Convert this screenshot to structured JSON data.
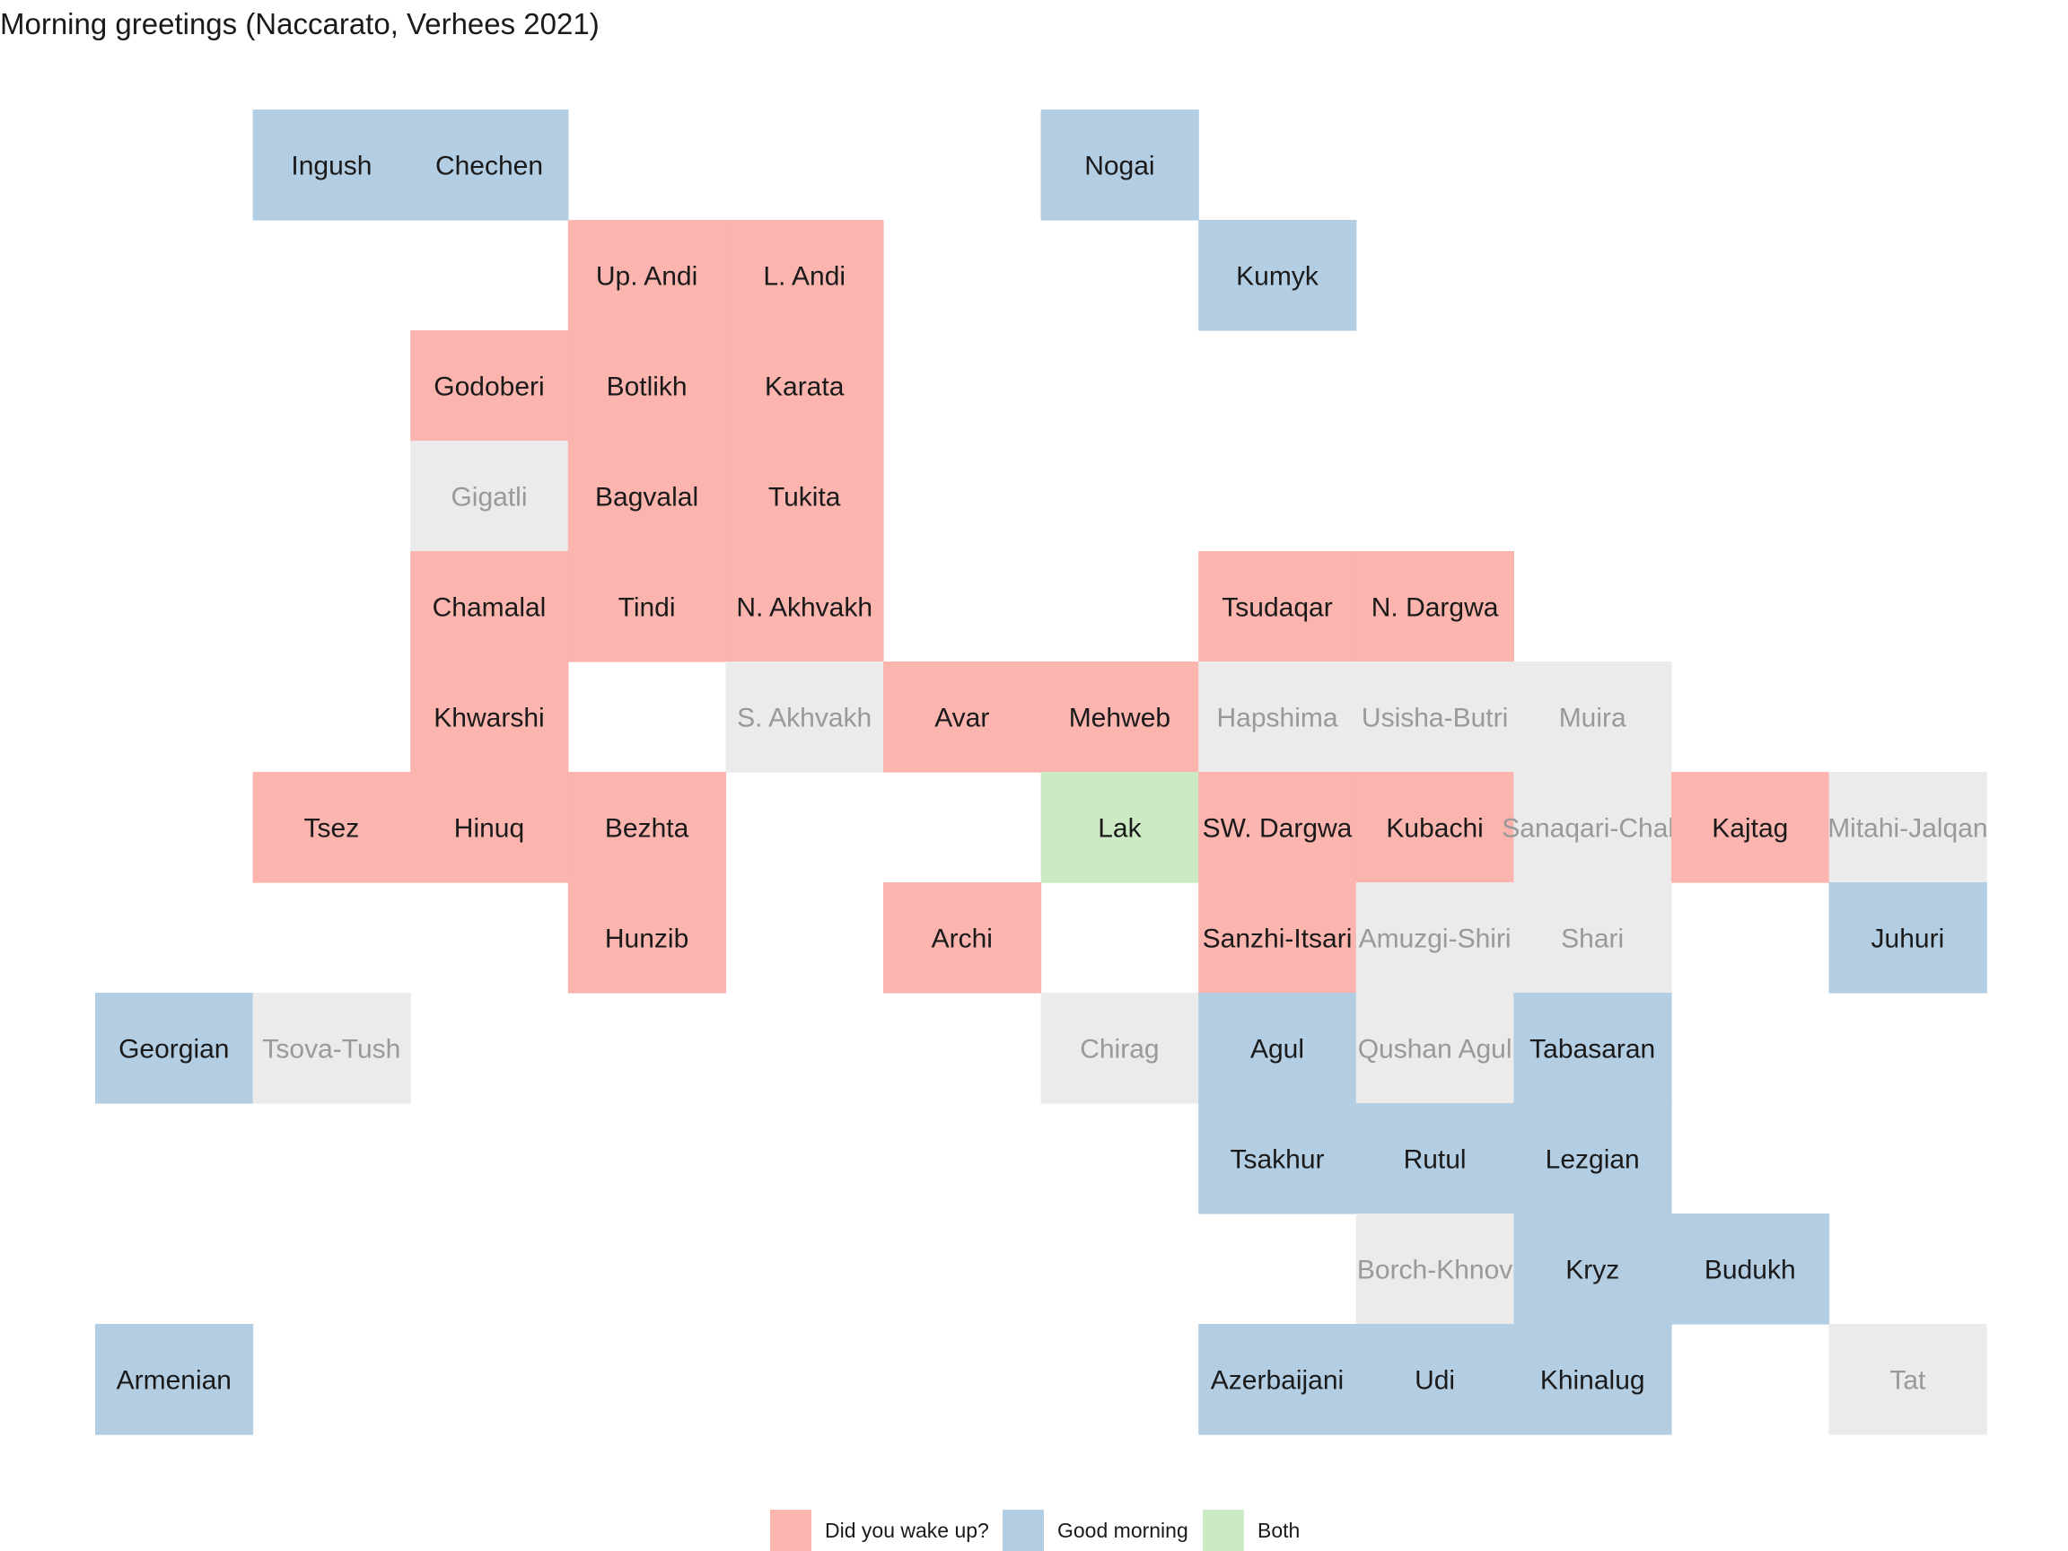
{
  "chart_data": {
    "type": "heatmap",
    "title": "Morning greetings (Naccarato, Verhees 2021)",
    "categories": [
      {
        "key": "wake",
        "label": "Did you wake up?",
        "color": "#fbb4ae"
      },
      {
        "key": "morning",
        "label": "Good morning",
        "color": "#b3cde3"
      },
      {
        "key": "both",
        "label": "Both",
        "color": "#ccebc5"
      }
    ],
    "missing_color": "#ebebeb",
    "text_color": "#1a1a1a",
    "missing_text_color": "#999999",
    "grid": {
      "cols": 12,
      "rows": 12
    },
    "tiles": [
      {
        "name": "Ingush",
        "col": 2,
        "row": 1,
        "value": "morning"
      },
      {
        "name": "Chechen",
        "col": 3,
        "row": 1,
        "value": "morning"
      },
      {
        "name": "Nogai",
        "col": 7,
        "row": 1,
        "value": "morning"
      },
      {
        "name": "Up. Andi",
        "col": 4,
        "row": 2,
        "value": "wake"
      },
      {
        "name": "L. Andi",
        "col": 5,
        "row": 2,
        "value": "wake"
      },
      {
        "name": "Kumyk",
        "col": 8,
        "row": 2,
        "value": "morning"
      },
      {
        "name": "Godoberi",
        "col": 3,
        "row": 3,
        "value": "wake"
      },
      {
        "name": "Botlikh",
        "col": 4,
        "row": 3,
        "value": "wake"
      },
      {
        "name": "Karata",
        "col": 5,
        "row": 3,
        "value": "wake"
      },
      {
        "name": "Gigatli",
        "col": 3,
        "row": 4,
        "value": null
      },
      {
        "name": "Bagvalal",
        "col": 4,
        "row": 4,
        "value": "wake"
      },
      {
        "name": "Tukita",
        "col": 5,
        "row": 4,
        "value": "wake"
      },
      {
        "name": "Chamalal",
        "col": 3,
        "row": 5,
        "value": "wake"
      },
      {
        "name": "Tindi",
        "col": 4,
        "row": 5,
        "value": "wake"
      },
      {
        "name": "N. Akhvakh",
        "col": 5,
        "row": 5,
        "value": "wake"
      },
      {
        "name": "Tsudaqar",
        "col": 8,
        "row": 5,
        "value": "wake"
      },
      {
        "name": "N. Dargwa",
        "col": 9,
        "row": 5,
        "value": "wake"
      },
      {
        "name": "Khwarshi",
        "col": 3,
        "row": 6,
        "value": "wake"
      },
      {
        "name": "S. Akhvakh",
        "col": 5,
        "row": 6,
        "value": null
      },
      {
        "name": "Avar",
        "col": 6,
        "row": 6,
        "value": "wake"
      },
      {
        "name": "Mehweb",
        "col": 7,
        "row": 6,
        "value": "wake"
      },
      {
        "name": "Hapshima",
        "col": 8,
        "row": 6,
        "value": null
      },
      {
        "name": "Usisha-Butri",
        "col": 9,
        "row": 6,
        "value": null
      },
      {
        "name": "Muira",
        "col": 10,
        "row": 6,
        "value": null
      },
      {
        "name": "Tsez",
        "col": 2,
        "row": 7,
        "value": "wake"
      },
      {
        "name": "Hinuq",
        "col": 3,
        "row": 7,
        "value": "wake"
      },
      {
        "name": "Bezhta",
        "col": 4,
        "row": 7,
        "value": "wake"
      },
      {
        "name": "Lak",
        "col": 7,
        "row": 7,
        "value": "both"
      },
      {
        "name": "SW. Dargwa",
        "col": 8,
        "row": 7,
        "value": "wake"
      },
      {
        "name": "Kubachi",
        "col": 9,
        "row": 7,
        "value": "wake"
      },
      {
        "name": "Sanaqari-Chah",
        "col": 10,
        "row": 7,
        "value": null
      },
      {
        "name": "Kajtag",
        "col": 11,
        "row": 7,
        "value": "wake"
      },
      {
        "name": "Mitahi-Jalqan",
        "col": 12,
        "row": 7,
        "value": null
      },
      {
        "name": "Hunzib",
        "col": 4,
        "row": 8,
        "value": "wake"
      },
      {
        "name": "Archi",
        "col": 6,
        "row": 8,
        "value": "wake"
      },
      {
        "name": "Sanzhi-Itsari",
        "col": 8,
        "row": 8,
        "value": "wake"
      },
      {
        "name": "Amuzgi-Shiri",
        "col": 9,
        "row": 8,
        "value": null
      },
      {
        "name": "Shari",
        "col": 10,
        "row": 8,
        "value": null
      },
      {
        "name": "Juhuri",
        "col": 12,
        "row": 8,
        "value": "morning"
      },
      {
        "name": "Georgian",
        "col": 1,
        "row": 9,
        "value": "morning"
      },
      {
        "name": "Tsova-Tush",
        "col": 2,
        "row": 9,
        "value": null
      },
      {
        "name": "Chirag",
        "col": 7,
        "row": 9,
        "value": null
      },
      {
        "name": "Agul",
        "col": 8,
        "row": 9,
        "value": "morning"
      },
      {
        "name": "Qushan Agul",
        "col": 9,
        "row": 9,
        "value": null
      },
      {
        "name": "Tabasaran",
        "col": 10,
        "row": 9,
        "value": "morning"
      },
      {
        "name": "Tsakhur",
        "col": 8,
        "row": 10,
        "value": "morning"
      },
      {
        "name": "Rutul",
        "col": 9,
        "row": 10,
        "value": "morning"
      },
      {
        "name": "Lezgian",
        "col": 10,
        "row": 10,
        "value": "morning"
      },
      {
        "name": "Borch-Khnov",
        "col": 9,
        "row": 11,
        "value": null
      },
      {
        "name": "Kryz",
        "col": 10,
        "row": 11,
        "value": "morning"
      },
      {
        "name": "Budukh",
        "col": 11,
        "row": 11,
        "value": "morning"
      },
      {
        "name": "Armenian",
        "col": 1,
        "row": 12,
        "value": "morning"
      },
      {
        "name": "Azerbaijani",
        "col": 8,
        "row": 12,
        "value": "morning"
      },
      {
        "name": "Udi",
        "col": 9,
        "row": 12,
        "value": "morning"
      },
      {
        "name": "Khinalug",
        "col": 10,
        "row": 12,
        "value": "morning"
      },
      {
        "name": "Tat",
        "col": 12,
        "row": 12,
        "value": null
      }
    ]
  }
}
